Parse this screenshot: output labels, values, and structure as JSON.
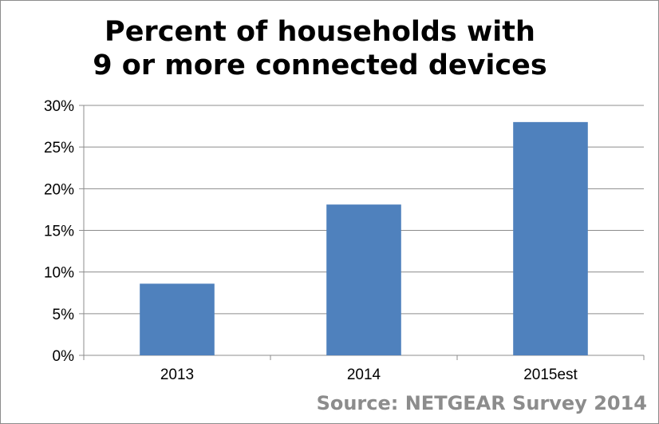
{
  "chart_data": {
    "type": "bar",
    "title_lines": [
      "Percent of households with",
      "9 or more connected devices"
    ],
    "categories": [
      "2013",
      "2014",
      "2015est"
    ],
    "values": [
      8.6,
      18.1,
      28.0
    ],
    "value_unit": "%",
    "xlabel": "",
    "ylabel": "",
    "ylim": [
      0,
      30
    ],
    "yticks": [
      "0%",
      "5%",
      "10%",
      "15%",
      "20%",
      "25%",
      "30%"
    ],
    "grid": true,
    "legend": "none",
    "bar_color": "#4f81bd"
  },
  "source": "Source: NETGEAR  Survey 2014"
}
